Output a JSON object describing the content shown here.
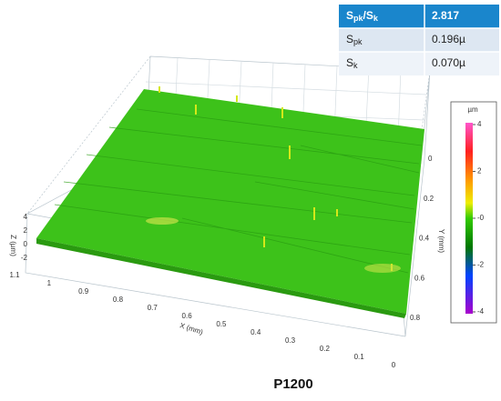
{
  "table": {
    "rows": [
      {
        "label": [
          "S",
          "pk",
          "/S",
          "k"
        ],
        "value": "2.817"
      },
      {
        "label": [
          "S",
          "pk"
        ],
        "value": "0.196µ"
      },
      {
        "label": [
          "S",
          "k"
        ],
        "value": "0.070µ"
      }
    ]
  },
  "plot": {
    "x_axis": {
      "title": "X (mm)",
      "ticks": [
        "1.1",
        "1",
        "0.9",
        "0.8",
        "0.7",
        "0.6",
        "0.5",
        "0.4",
        "0.3",
        "0.2",
        "0.1",
        "0"
      ]
    },
    "y_axis": {
      "title": "Y (mm)",
      "ticks": [
        "0",
        "0.2",
        "0.4",
        "0.6",
        "0.8"
      ]
    },
    "z_axis": {
      "title": "Z (µm)",
      "ticks": [
        "4",
        "2",
        "0",
        "-2"
      ]
    },
    "colorbar": {
      "unit": "µm",
      "ticks": [
        "4",
        "2",
        "-0",
        "-2",
        "-4"
      ]
    }
  },
  "caption": "P1200"
}
